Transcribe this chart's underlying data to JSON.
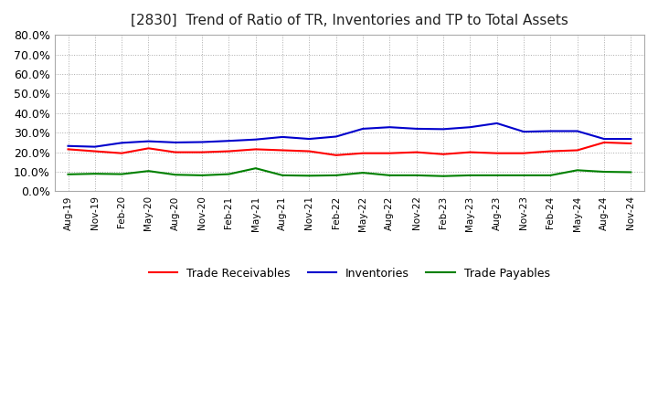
{
  "title": "[2830]  Trend of Ratio of TR, Inventories and TP to Total Assets",
  "title_fontsize": 11,
  "ylim": [
    0.0,
    0.8
  ],
  "yticks": [
    0.0,
    0.1,
    0.2,
    0.3,
    0.4,
    0.5,
    0.6,
    0.7,
    0.8
  ],
  "yticklabels": [
    "0.0%",
    "10.0%",
    "20.0%",
    "30.0%",
    "40.0%",
    "50.0%",
    "60.0%",
    "70.0%",
    "80.0%"
  ],
  "x_labels": [
    "Aug-19",
    "Nov-19",
    "Feb-20",
    "May-20",
    "Aug-20",
    "Nov-20",
    "Feb-21",
    "May-21",
    "Aug-21",
    "Nov-21",
    "Feb-22",
    "May-22",
    "Aug-22",
    "Nov-22",
    "Feb-23",
    "May-23",
    "Aug-23",
    "Nov-23",
    "Feb-24",
    "May-24",
    "Aug-24",
    "Nov-24"
  ],
  "trade_receivables": [
    0.215,
    0.205,
    0.195,
    0.22,
    0.2,
    0.2,
    0.205,
    0.215,
    0.21,
    0.205,
    0.185,
    0.195,
    0.195,
    0.2,
    0.19,
    0.2,
    0.195,
    0.195,
    0.205,
    0.21,
    0.25,
    0.245
  ],
  "inventories": [
    0.232,
    0.228,
    0.248,
    0.256,
    0.25,
    0.252,
    0.258,
    0.265,
    0.278,
    0.268,
    0.28,
    0.32,
    0.328,
    0.32,
    0.318,
    0.328,
    0.348,
    0.305,
    0.308,
    0.308,
    0.268,
    0.268
  ],
  "trade_payables": [
    0.087,
    0.09,
    0.088,
    0.104,
    0.085,
    0.082,
    0.088,
    0.118,
    0.082,
    0.08,
    0.082,
    0.095,
    0.082,
    0.082,
    0.078,
    0.082,
    0.082,
    0.082,
    0.082,
    0.108,
    0.1,
    0.098
  ],
  "tr_color": "#ff0000",
  "inv_color": "#0000cc",
  "tp_color": "#008000",
  "background_color": "#ffffff",
  "grid_color": "#aaaaaa",
  "legend_labels": [
    "Trade Receivables",
    "Inventories",
    "Trade Payables"
  ]
}
